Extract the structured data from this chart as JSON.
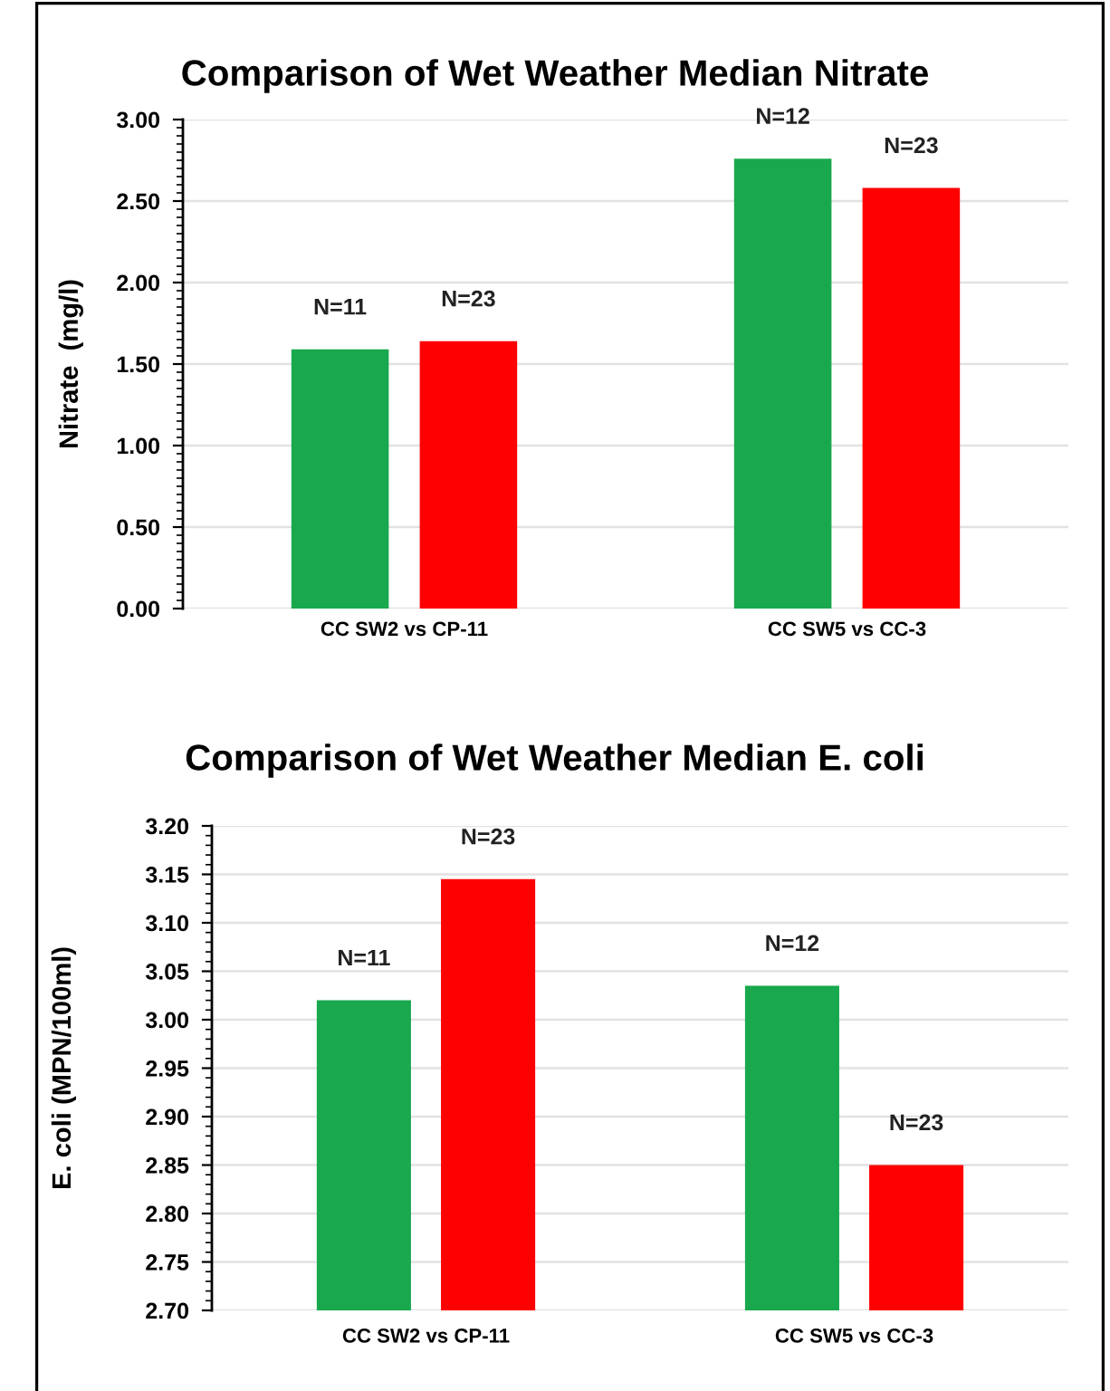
{
  "chart_data": [
    {
      "type": "bar",
      "title": "Comparison of Wet Weather Median Nitrate",
      "ylabel": "Nitrate  (mg/l)",
      "categories": [
        "CC SW2 vs CP-11",
        "CC SW5 vs CC-3"
      ],
      "series": [
        {
          "color": "#19a84d",
          "values": [
            1.59,
            2.76
          ]
        },
        {
          "color": "#ff0000",
          "values": [
            1.64,
            2.58
          ]
        }
      ],
      "annotations": [
        "N=11",
        "N=23",
        "N=12",
        "N=23"
      ],
      "ylim": [
        0,
        3
      ],
      "yticks": [
        {
          "value": 0,
          "label": "0.00"
        },
        {
          "value": 0.5,
          "label": "0.50"
        },
        {
          "value": 1,
          "label": "1.00"
        },
        {
          "value": 1.5,
          "label": "1.50"
        },
        {
          "value": 2,
          "label": "2.00"
        },
        {
          "value": 2.5,
          "label": "2.50"
        },
        {
          "value": 3,
          "label": "3.00"
        }
      ],
      "grid": "y"
    },
    {
      "type": "bar",
      "title": "Comparison of Wet Weather Median E. coli",
      "ylabel": "E. coli (MPN/100ml)",
      "categories": [
        "CC SW2 vs CP-11",
        "CC SW5 vs CC-3"
      ],
      "series": [
        {
          "color": "#19a84d",
          "values": [
            3.02,
            3.035
          ]
        },
        {
          "color": "#ff0000",
          "values": [
            3.145,
            2.85
          ]
        }
      ],
      "annotations": [
        "N=11",
        "N=23",
        "N=12",
        "N=23"
      ],
      "ylim": [
        2.7,
        3.2
      ],
      "yticks": [
        {
          "value": 2.7,
          "label": "2.70"
        },
        {
          "value": 2.75,
          "label": "2.75"
        },
        {
          "value": 2.8,
          "label": "2.80"
        },
        {
          "value": 2.85,
          "label": "2.85"
        },
        {
          "value": 2.9,
          "label": "2.90"
        },
        {
          "value": 2.95,
          "label": "2.95"
        },
        {
          "value": 3.0,
          "label": "3.00"
        },
        {
          "value": 3.05,
          "label": "3.05"
        },
        {
          "value": 3.1,
          "label": "3.10"
        },
        {
          "value": 3.15,
          "label": "3.15"
        },
        {
          "value": 3.2,
          "label": "3.20"
        }
      ],
      "grid": "y"
    }
  ]
}
